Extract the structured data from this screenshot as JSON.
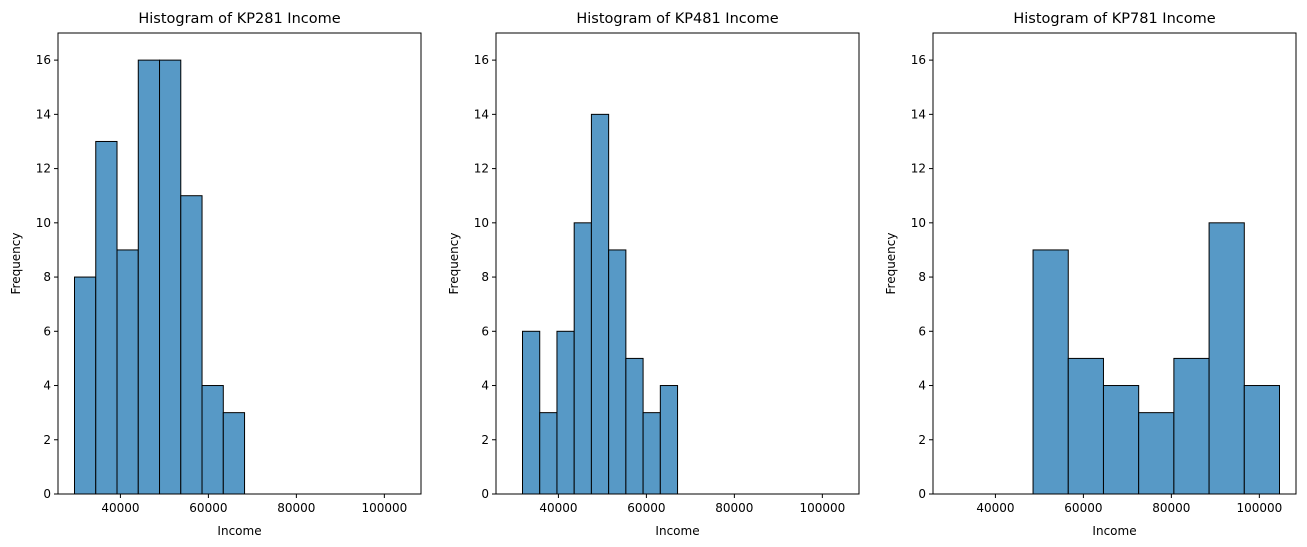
{
  "chart_data": [
    {
      "type": "histogram",
      "title": "Histogram of KP281 Income",
      "x_label": "Income",
      "y_label": "Frequency",
      "bins": [
        29562,
        34394,
        39227,
        44059,
        48891,
        53723,
        58556,
        63388,
        68220
      ],
      "values": [
        8,
        13,
        9,
        16,
        16,
        11,
        4,
        3
      ],
      "color": "#5799c6",
      "xlim": [
        25811,
        108332
      ],
      "xticks": [
        40000,
        60000,
        80000,
        100000
      ],
      "ylim": [
        0,
        17
      ],
      "yticks": [
        0,
        2,
        4,
        6,
        8,
        10,
        12,
        14,
        16
      ]
    },
    {
      "type": "histogram",
      "title": "Histogram of KP481 Income",
      "x_label": "Income",
      "y_label": "Frequency",
      "bins": [
        31836,
        35752,
        39669,
        43585,
        47501,
        51418,
        55334,
        59250,
        63167,
        67083
      ],
      "values": [
        6,
        3,
        6,
        10,
        14,
        9,
        5,
        3,
        4
      ],
      "color": "#5799c6",
      "xlim": [
        25811,
        108332
      ],
      "xticks": [
        40000,
        60000,
        80000,
        100000
      ],
      "ylim": [
        0,
        17
      ],
      "yticks": [
        0,
        2,
        4,
        6,
        8,
        10,
        12,
        14,
        16
      ]
    },
    {
      "type": "histogram",
      "title": "Histogram of KP781 Income",
      "x_label": "Income",
      "y_label": "Frequency",
      "bins": [
        48556,
        56560,
        64563,
        72567,
        80570,
        88574,
        96578,
        104581
      ],
      "values": [
        9,
        5,
        4,
        3,
        5,
        10,
        4
      ],
      "color": "#5799c6",
      "xlim": [
        25811,
        108332
      ],
      "xticks": [
        40000,
        60000,
        80000,
        100000
      ],
      "ylim": [
        0,
        17
      ],
      "yticks": [
        0,
        2,
        4,
        6,
        8,
        10,
        12,
        14,
        16
      ]
    }
  ]
}
